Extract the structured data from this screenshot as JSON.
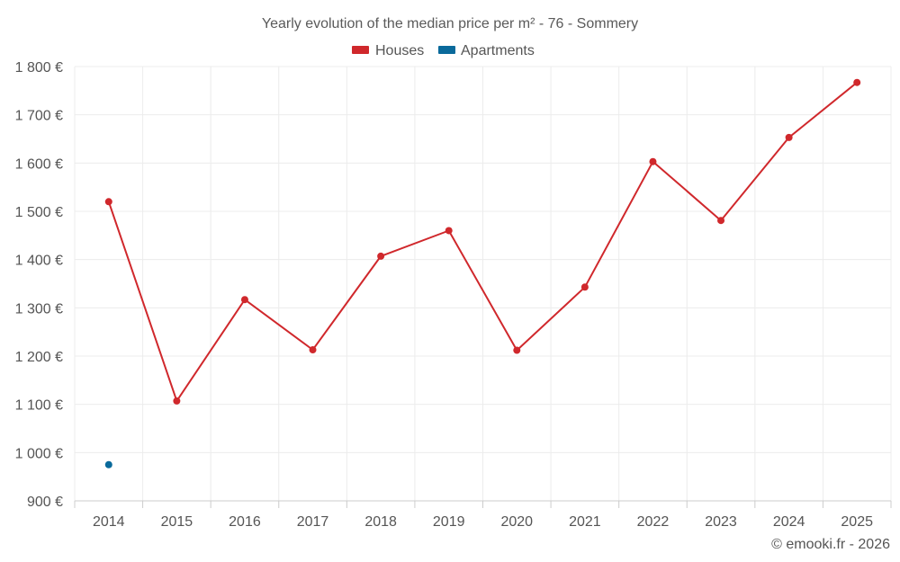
{
  "chart_data": {
    "type": "line",
    "title": "Yearly evolution of the median price per m² - 76 - Sommery",
    "categories": [
      "2014",
      "2015",
      "2016",
      "2017",
      "2018",
      "2019",
      "2020",
      "2021",
      "2022",
      "2023",
      "2024",
      "2025"
    ],
    "series": [
      {
        "name": "Houses",
        "color": "#d0282c",
        "values": [
          1520,
          1107,
          1317,
          1213,
          1407,
          1460,
          1212,
          1343,
          1603,
          1481,
          1653,
          1767
        ]
      },
      {
        "name": "Apartments",
        "color": "#0a6a9b",
        "values": [
          975,
          null,
          null,
          null,
          null,
          null,
          null,
          null,
          null,
          null,
          null,
          null
        ]
      }
    ],
    "ylim": [
      900,
      1800
    ],
    "yticks": [
      900,
      1000,
      1100,
      1200,
      1300,
      1400,
      1500,
      1600,
      1700,
      1800
    ],
    "ytick_labels": [
      "900 €",
      "1 000 €",
      "1 100 €",
      "1 200 €",
      "1 300 €",
      "1 400 €",
      "1 500 €",
      "1 600 €",
      "1 700 €",
      "1 800 €"
    ],
    "xlabel": "",
    "ylabel": "",
    "grid": true,
    "legend_position": "top-center"
  },
  "credit": "© emooki.fr - 2026"
}
